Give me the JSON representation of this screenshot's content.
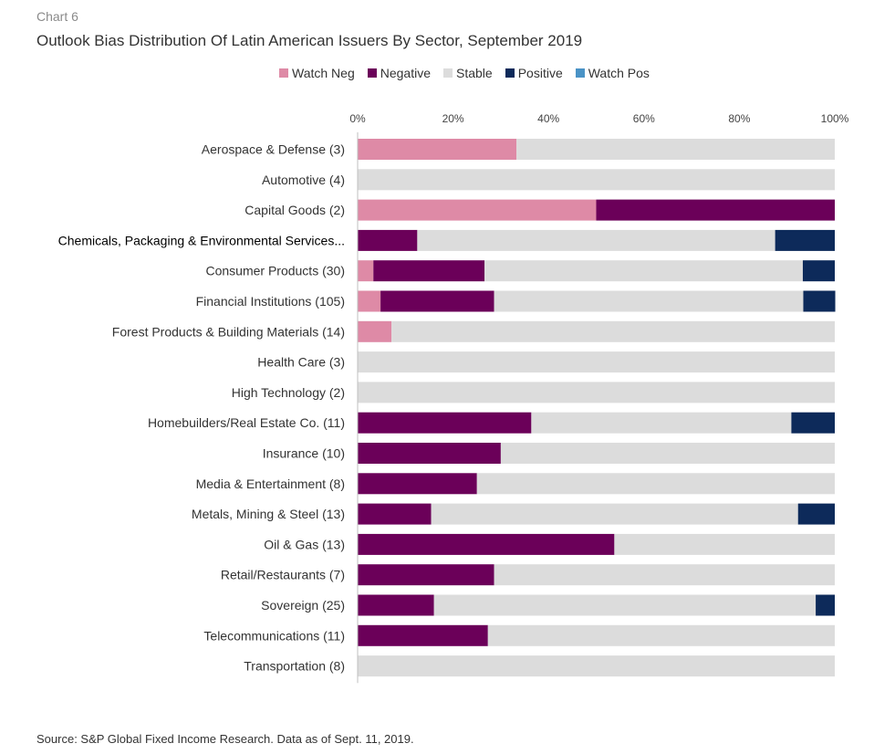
{
  "header": {
    "chart_number": "Chart 6",
    "title": "Outlook Bias Distribution Of Latin American Issuers By Sector, September 2019"
  },
  "footer": {
    "source": "Source: S&P Global Fixed Income Research. Data as of Sept. 11, 2019."
  },
  "chart_data": {
    "type": "bar",
    "orientation": "horizontal",
    "stacked": true,
    "title": "Outlook Bias Distribution Of Latin American Issuers By Sector, September 2019",
    "xlim": [
      0,
      100
    ],
    "x_ticks": [
      "0%",
      "20%",
      "40%",
      "60%",
      "80%",
      "100%"
    ],
    "x_tick_values": [
      0,
      20,
      40,
      60,
      80,
      100
    ],
    "x_axis_position": "top",
    "legend_position": "top",
    "grid": false,
    "categories": [
      "Aerospace & Defense (3)",
      "Automotive (4)",
      "Capital Goods (2)",
      "Chemicals, Packaging & Environmental Services...",
      "Consumer Products (30)",
      "Financial Institutions (105)",
      "Forest Products & Building Materials (14)",
      "Health Care (3)",
      "High Technology (2)",
      "Homebuilders/Real Estate Co. (11)",
      "Insurance (10)",
      "Media & Entertainment (8)",
      "Metals, Mining & Steel (13)",
      "Oil & Gas (13)",
      "Retail/Restaurants (7)",
      "Sovereign (25)",
      "Telecommunications (11)",
      "Transportation (8)"
    ],
    "highlighted_category_index": 3,
    "series": [
      {
        "name": "Watch Neg",
        "color": "#de8aa6",
        "values": [
          33.3,
          0,
          50,
          0,
          3.3,
          4.8,
          7.1,
          0,
          0,
          0,
          0,
          0,
          0,
          0,
          0,
          0,
          0,
          0
        ]
      },
      {
        "name": "Negative",
        "color": "#6b0059",
        "values": [
          0,
          0,
          50,
          12.5,
          23.3,
          23.8,
          0,
          0,
          0,
          36.4,
          30,
          25,
          15.4,
          53.8,
          28.6,
          16,
          27.3,
          0
        ]
      },
      {
        "name": "Stable",
        "color": "#dcdcdc",
        "values": [
          66.7,
          100,
          0,
          75,
          66.7,
          64.8,
          92.9,
          100,
          100,
          54.5,
          70,
          75,
          76.9,
          46.2,
          71.4,
          80,
          72.7,
          100
        ]
      },
      {
        "name": "Positive",
        "color": "#0d2a5a",
        "values": [
          0,
          0,
          0,
          12.5,
          6.7,
          6.7,
          0,
          0,
          0,
          9.1,
          0,
          0,
          7.7,
          0,
          0,
          4,
          0,
          0
        ]
      },
      {
        "name": "Watch Pos",
        "color": "#4a93c6",
        "values": [
          0,
          0,
          0,
          0,
          0,
          0,
          0,
          0,
          0,
          0,
          0,
          0,
          0,
          0,
          0,
          0,
          0,
          0
        ]
      }
    ]
  }
}
